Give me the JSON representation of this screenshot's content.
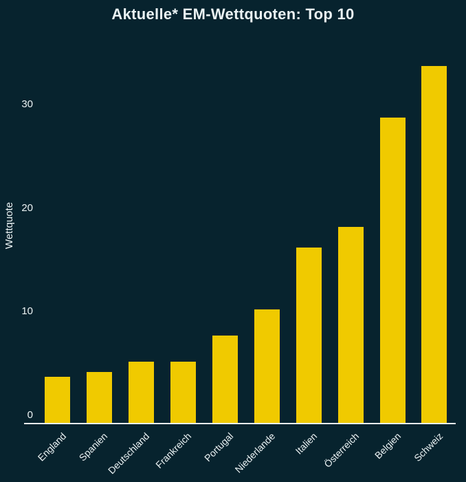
{
  "chart_data": {
    "type": "bar",
    "title": "Aktuelle* EM-Wettquoten: Top 10",
    "xlabel": "",
    "ylabel": "Wettquote",
    "categories": [
      "England",
      "Spanien",
      "Deutschland",
      "Frankreich",
      "Portugal",
      "Niederlande",
      "Italien",
      "Österreich",
      "Belgien",
      "Schweiz"
    ],
    "values": [
      4.5,
      5,
      6,
      6,
      8.5,
      11,
      17,
      19,
      29.5,
      34.5
    ],
    "yticks": [
      0,
      10,
      20,
      30
    ],
    "ylim": [
      0,
      35.5
    ],
    "grid": false,
    "legend": false,
    "orientation": "vertical",
    "colors": {
      "background": "#07232e",
      "bar": "#f0ca00",
      "text": "#eaf2f3",
      "axis_line": "#eaf2f3"
    }
  }
}
